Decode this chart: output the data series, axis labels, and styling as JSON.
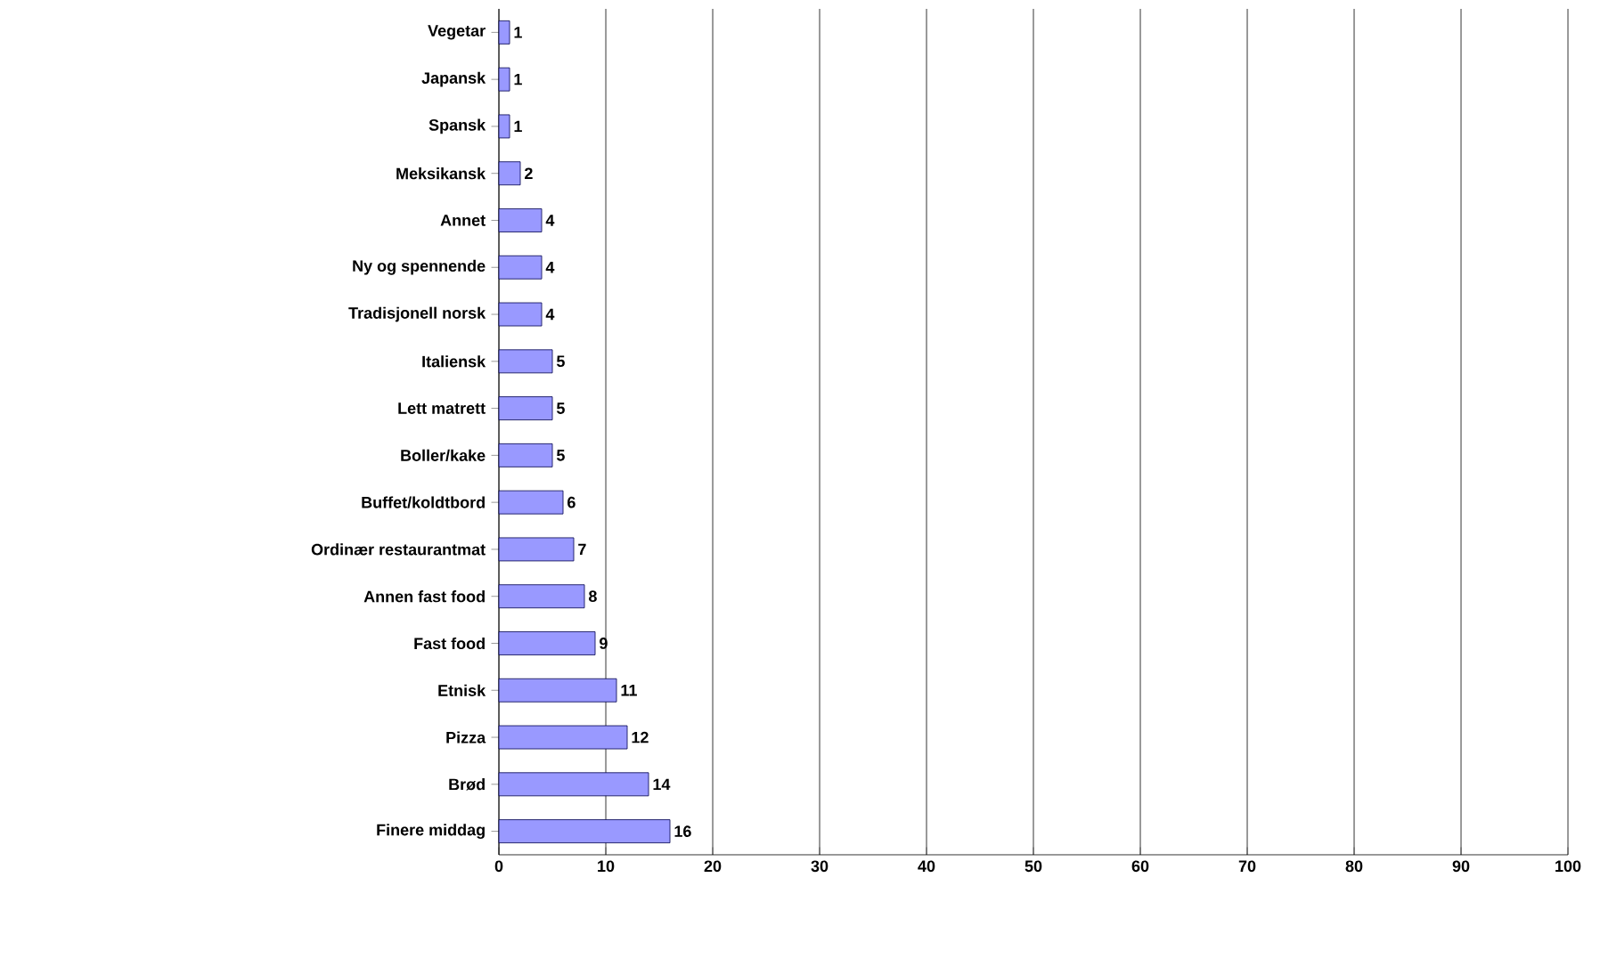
{
  "chart_data": {
    "type": "bar",
    "orientation": "horizontal",
    "categories": [
      "Vegetar",
      "Japansk",
      "Spansk",
      "Meksikansk",
      "Annet",
      "Ny og spennende",
      "Tradisjonell norsk",
      "Italiensk",
      "Lett matrett",
      "Boller/kake",
      "Buffet/koldtbord",
      "Ordinær restaurantmat",
      "Annen fast food",
      "Fast food",
      "Etnisk",
      "Pizza",
      "Brød",
      "Finere middag"
    ],
    "values": [
      1,
      1,
      1,
      2,
      4,
      4,
      4,
      5,
      5,
      5,
      6,
      7,
      8,
      9,
      11,
      12,
      14,
      16
    ],
    "color": "#9999ff",
    "xlim": [
      0,
      100
    ],
    "xticks": [
      0,
      10,
      20,
      30,
      40,
      50,
      60,
      70,
      80,
      90,
      100
    ],
    "grid": "x",
    "data_labels": true
  }
}
